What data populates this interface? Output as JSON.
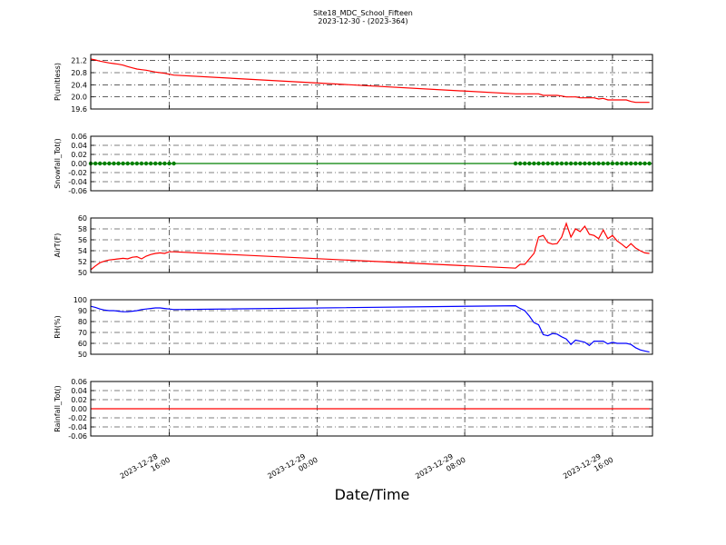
{
  "title": "Site18_MDC_School_Fifteen",
  "subtitle": "2023-12-30 - (2023-364)",
  "xlabel": "Date/Time",
  "xlim": [
    "2023-12-28 11:45",
    "2023-12-29 18:10"
  ],
  "xticks": [
    {
      "value": "2023-12-28 16:00",
      "label": [
        "2023-12-28",
        "16:00"
      ]
    },
    {
      "value": "2023-12-29 00:00",
      "label": [
        "2023-12-29",
        "00:00"
      ]
    },
    {
      "value": "2023-12-29 08:00",
      "label": [
        "2023-12-29",
        "08:00"
      ]
    },
    {
      "value": "2023-12-29 16:00",
      "label": [
        "2023-12-29",
        "16:00"
      ]
    }
  ],
  "grid": true,
  "x": [
    "2023-12-28 11:45",
    "2023-12-28 12:00",
    "2023-12-28 12:15",
    "2023-12-28 12:30",
    "2023-12-28 12:45",
    "2023-12-28 13:00",
    "2023-12-28 13:15",
    "2023-12-28 13:30",
    "2023-12-28 13:45",
    "2023-12-28 14:00",
    "2023-12-28 14:15",
    "2023-12-28 14:30",
    "2023-12-28 14:45",
    "2023-12-28 15:00",
    "2023-12-28 15:15",
    "2023-12-28 15:30",
    "2023-12-28 15:45",
    "2023-12-28 16:00",
    "2023-12-28 16:15",
    "2023-12-29 10:45",
    "2023-12-29 11:00",
    "2023-12-29 11:15",
    "2023-12-29 11:30",
    "2023-12-29 11:45",
    "2023-12-29 12:00",
    "2023-12-29 12:15",
    "2023-12-29 12:30",
    "2023-12-29 12:45",
    "2023-12-29 13:00",
    "2023-12-29 13:15",
    "2023-12-29 13:30",
    "2023-12-29 13:45",
    "2023-12-29 14:00",
    "2023-12-29 14:15",
    "2023-12-29 14:30",
    "2023-12-29 14:45",
    "2023-12-29 15:00",
    "2023-12-29 15:15",
    "2023-12-29 15:30",
    "2023-12-29 15:45",
    "2023-12-29 16:00",
    "2023-12-29 16:15",
    "2023-12-29 16:30",
    "2023-12-29 16:45",
    "2023-12-29 17:00",
    "2023-12-29 17:15",
    "2023-12-29 17:30",
    "2023-12-29 17:45",
    "2023-12-29 18:00"
  ],
  "chart_data": [
    {
      "type": "line",
      "ylabel": "P(unitless)",
      "color": "#ff0000",
      "marker": false,
      "ylim": [
        19.6,
        21.4
      ],
      "yticks": [
        19.6,
        {
          "value": 20,
          "label": "20.0"
        },
        20.4,
        20.8,
        21.2
      ],
      "values": [
        21.25,
        21.22,
        21.18,
        21.15,
        21.12,
        21.1,
        21.08,
        21.05,
        21.0,
        20.96,
        20.92,
        20.9,
        20.88,
        20.85,
        20.82,
        20.8,
        20.78,
        20.75,
        20.72,
        20.1,
        20.1,
        20.1,
        20.1,
        20.1,
        20.1,
        20.05,
        20.05,
        20.05,
        20.05,
        20.03,
        20.0,
        20.0,
        20.0,
        19.97,
        19.97,
        19.97,
        19.97,
        19.93,
        19.95,
        19.9,
        19.9,
        19.9,
        19.9,
        19.9,
        19.85,
        19.82,
        19.82,
        19.82,
        19.82
      ]
    },
    {
      "type": "line",
      "ylabel": "Snowfall_Tot()",
      "color": "#008000",
      "marker": true,
      "ylim": [
        -0.06,
        0.06
      ],
      "yticks": [
        -0.06,
        -0.04,
        -0.02,
        {
          "value": 0,
          "label": "0.00"
        },
        0.02,
        0.04,
        0.06
      ],
      "values": [
        0,
        0,
        0,
        0,
        0,
        0,
        0,
        0,
        0,
        0,
        0,
        0,
        0,
        0,
        0,
        0,
        0,
        0,
        0,
        0,
        0,
        0,
        0,
        0,
        0,
        0,
        0,
        0,
        0,
        0,
        0,
        0,
        0,
        0,
        0,
        0,
        0,
        0,
        0,
        0,
        0,
        0,
        0,
        0,
        0,
        0,
        0,
        0,
        0
      ]
    },
    {
      "type": "line",
      "ylabel": "AirT(F)",
      "color": "#ff0000",
      "marker": false,
      "ylim": [
        50,
        60
      ],
      "yticks": [
        50,
        52,
        54,
        56,
        58,
        60
      ],
      "values": [
        50.5,
        51.2,
        51.8,
        52.1,
        52.3,
        52.4,
        52.5,
        52.6,
        52.5,
        52.8,
        52.9,
        52.5,
        53,
        53.3,
        53.5,
        53.6,
        53.5,
        53.8,
        53.8,
        50.8,
        51.5,
        51.5,
        52.5,
        53.5,
        56.5,
        56.8,
        55.5,
        55.2,
        55.3,
        56.5,
        59,
        56.5,
        58,
        57.5,
        58.5,
        57,
        56.8,
        56.2,
        57.8,
        56.2,
        56.8,
        55.8,
        55.2,
        54.5,
        55.3,
        54.5,
        54,
        53.6,
        53.5
      ]
    },
    {
      "type": "line",
      "ylabel": "RH(%)",
      "color": "#0000ff",
      "marker": false,
      "ylim": [
        50,
        100
      ],
      "yticks": [
        50,
        60,
        70,
        80,
        90,
        100
      ],
      "values": [
        94,
        93,
        91.5,
        90.5,
        90,
        90,
        89.5,
        89,
        89,
        89.5,
        90,
        91,
        91.5,
        92,
        92.5,
        92.5,
        92,
        91.5,
        91,
        94.5,
        92,
        90,
        85,
        79,
        77,
        68,
        67,
        69,
        68.5,
        66,
        64,
        59,
        63,
        62,
        61,
        58,
        62,
        62,
        62,
        59.5,
        61,
        60,
        60,
        60,
        59,
        56,
        54,
        53,
        52
      ]
    },
    {
      "type": "line",
      "ylabel": "Rainfall_Tot()",
      "color": "#ff0000",
      "marker": false,
      "ylim": [
        -0.06,
        0.06
      ],
      "yticks": [
        -0.06,
        -0.04,
        -0.02,
        {
          "value": 0,
          "label": "0.00"
        },
        0.02,
        0.04,
        0.06
      ],
      "values": [
        0,
        0,
        0,
        0,
        0,
        0,
        0,
        0,
        0,
        0,
        0,
        0,
        0,
        0,
        0,
        0,
        0,
        0,
        0,
        0,
        0,
        0,
        0,
        0,
        0,
        0,
        0,
        0,
        0,
        0,
        0,
        0,
        0,
        0,
        0,
        0,
        0,
        0,
        0,
        0,
        0,
        0,
        0,
        0,
        0,
        0,
        0,
        0,
        0
      ]
    }
  ]
}
